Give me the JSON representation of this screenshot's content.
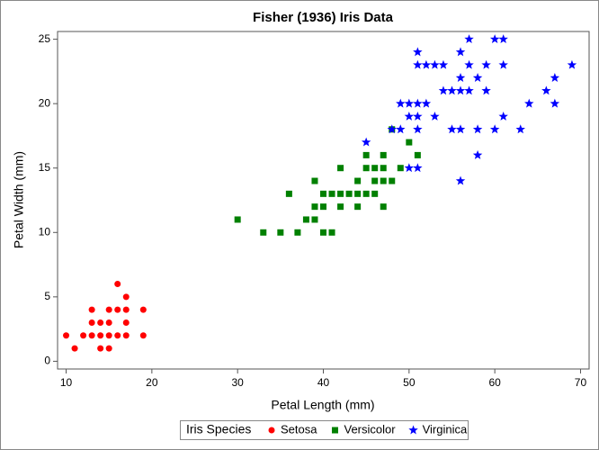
{
  "chart_data": {
    "type": "scatter",
    "title": "Fisher (1936) Iris Data",
    "x_label": "Petal Length (mm)",
    "y_label": "Petal Width (mm)",
    "legend_title": "Iris Species",
    "legend": "bottom",
    "xlim": [
      9,
      71
    ],
    "ylim": [
      -0.6,
      25.6
    ],
    "xticks": [
      10,
      20,
      30,
      40,
      50,
      60,
      70
    ],
    "yticks": [
      0,
      5,
      10,
      15,
      20,
      25
    ],
    "series": [
      {
        "name": "Setosa",
        "color": "#ff0000",
        "marker": "circle",
        "x": [
          10,
          11,
          12,
          13,
          13,
          13,
          14,
          14,
          14,
          15,
          15,
          15,
          15,
          16,
          16,
          16,
          17,
          17,
          17,
          17,
          19,
          19
        ],
        "values": [
          2,
          1,
          2,
          2,
          3,
          4,
          1,
          2,
          3,
          1,
          2,
          3,
          4,
          2,
          4,
          6,
          2,
          3,
          4,
          5,
          2,
          4
        ]
      },
      {
        "name": "Versicolor",
        "color": "#008000",
        "marker": "square",
        "x": [
          30,
          33,
          35,
          36,
          37,
          38,
          39,
          39,
          39,
          40,
          40,
          40,
          41,
          41,
          42,
          42,
          42,
          43,
          44,
          44,
          44,
          45,
          45,
          45,
          46,
          46,
          46,
          47,
          47,
          47,
          47,
          48,
          48,
          49,
          50,
          51
        ],
        "values": [
          11,
          10,
          10,
          13,
          10,
          11,
          11,
          12,
          14,
          10,
          12,
          13,
          10,
          13,
          12,
          13,
          15,
          13,
          12,
          13,
          14,
          13,
          15,
          16,
          13,
          14,
          15,
          12,
          14,
          15,
          16,
          14,
          18,
          15,
          17,
          16
        ]
      },
      {
        "name": "Virginica",
        "color": "#0000ff",
        "marker": "star",
        "x": [
          45,
          48,
          49,
          49,
          50,
          50,
          50,
          51,
          51,
          51,
          51,
          51,
          51,
          52,
          52,
          53,
          53,
          54,
          54,
          55,
          55,
          56,
          56,
          56,
          56,
          56,
          57,
          57,
          57,
          58,
          58,
          58,
          59,
          59,
          60,
          60,
          61,
          61,
          61,
          63,
          64,
          66,
          67,
          67,
          69
        ],
        "values": [
          17,
          18,
          18,
          20,
          15,
          19,
          20,
          15,
          18,
          19,
          20,
          23,
          24,
          20,
          23,
          19,
          23,
          21,
          23,
          18,
          21,
          14,
          18,
          21,
          22,
          24,
          21,
          23,
          25,
          16,
          18,
          22,
          21,
          23,
          18,
          25,
          19,
          23,
          25,
          18,
          20,
          21,
          20,
          22,
          23
        ]
      }
    ]
  }
}
